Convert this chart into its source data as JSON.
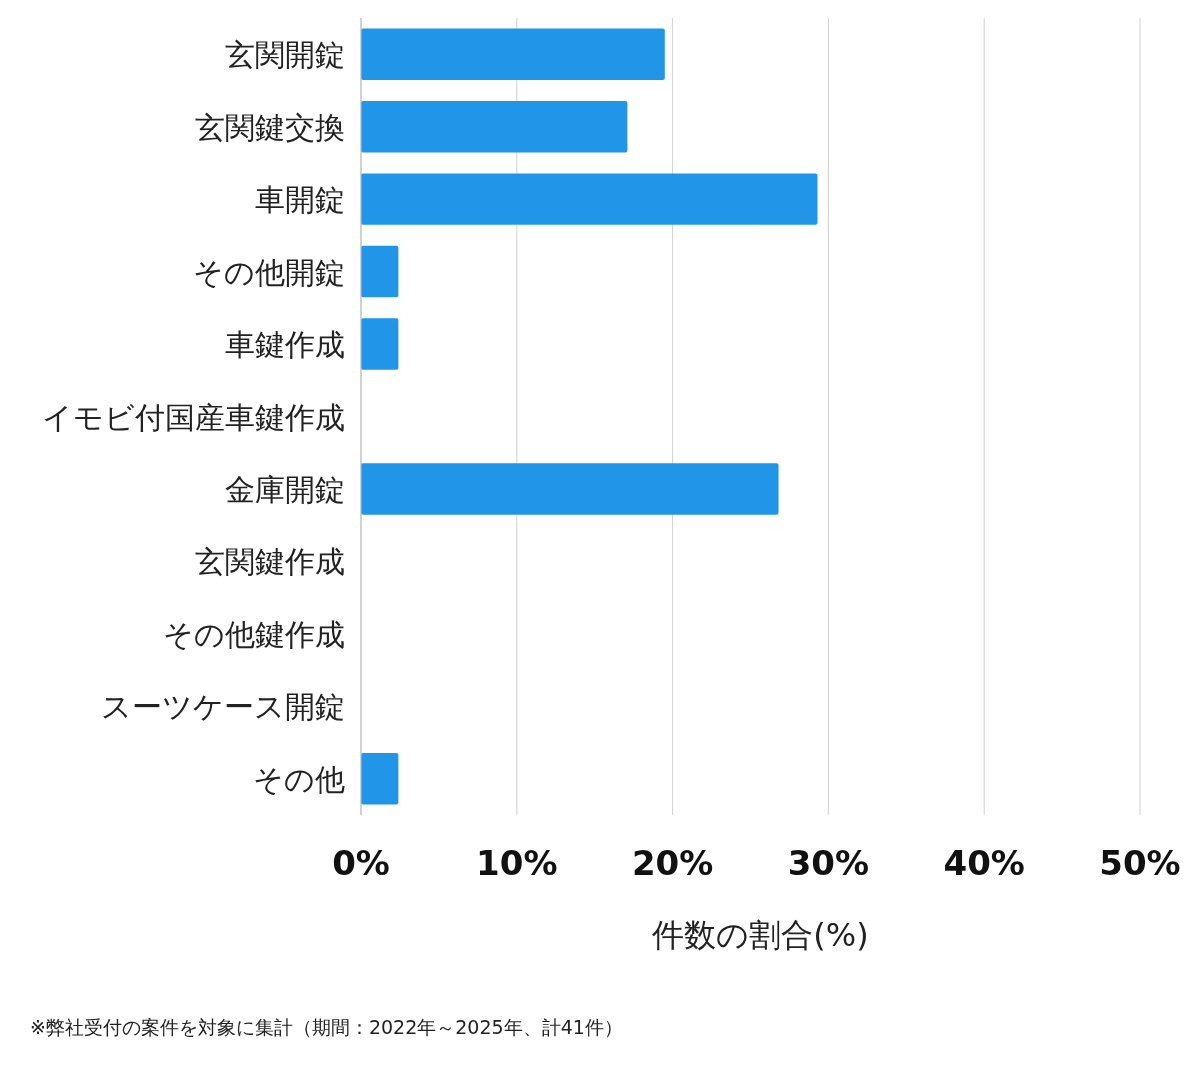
{
  "chart_data": {
    "type": "bar",
    "orientation": "horizontal",
    "categories": [
      "玄関開錠",
      "玄関鍵交換",
      "車開錠",
      "その他開錠",
      "車鍵作成",
      "イモビ付国産車鍵作成",
      "金庫開錠",
      "玄関鍵作成",
      "その他鍵作成",
      "スーツケース開錠",
      "その他"
    ],
    "values": [
      19.5,
      17.1,
      29.3,
      2.4,
      2.4,
      0,
      26.8,
      0,
      0,
      0,
      2.4
    ],
    "color": "#2196e8",
    "xlim": [
      0,
      50
    ],
    "xticks": [
      {
        "value": 0,
        "label": "0%"
      },
      {
        "value": 10,
        "label": "10%"
      },
      {
        "value": 20,
        "label": "20%"
      },
      {
        "value": 30,
        "label": "30%"
      },
      {
        "value": 40,
        "label": "40%"
      },
      {
        "value": 50,
        "label": "50%"
      }
    ],
    "xlabel": "件数の割合(%)",
    "grid": "x",
    "annotations": [
      "※弊社受付の案件を対象に集計（期間：2022年～2025年、計41件）"
    ]
  }
}
